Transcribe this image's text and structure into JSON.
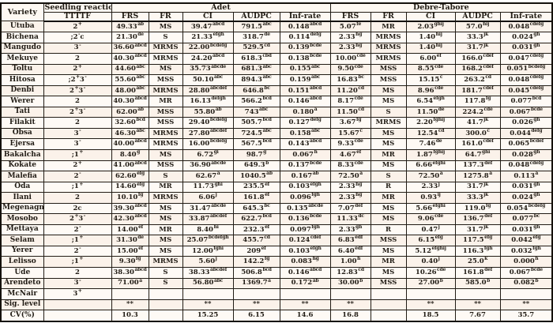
{
  "header": {
    "variety": "Variety",
    "seedling_reaction": "Seedling reaction",
    "race": "TTTTF",
    "location_adet": "Adet",
    "location_debre": "Debre-Tabore",
    "metrics": [
      "FRS",
      "FR",
      "CI",
      "AUDPC",
      "Inf-rate"
    ]
  },
  "rows": [
    {
      "variety": "Utuba",
      "seedling": "2{+}",
      "cells": [
        [
          "49.33",
          "ab"
        ],
        "MS",
        [
          "39.47",
          "abcd"
        ],
        [
          "791.5",
          "abc"
        ],
        [
          "0.148",
          "abcd"
        ],
        [
          "5.07",
          "fe"
        ],
        "MR",
        [
          "2.03",
          "ghij"
        ],
        [
          "57.0",
          "hij"
        ],
        [
          "0.048",
          "cdefg"
        ]
      ]
    },
    {
      "variety": "Bichena",
      "seedling": ";2{-}c",
      "cells": [
        [
          "21.30",
          "de"
        ],
        "S",
        [
          "21.33",
          "efgh"
        ],
        [
          "318.7",
          "de"
        ],
        [
          "0.114",
          "defg"
        ],
        [
          "2.33",
          "hg"
        ],
        "MRMS",
        [
          "1.40",
          "hij"
        ],
        [
          "33.3",
          "jk"
        ],
        [
          "0.024",
          "gh"
        ]
      ]
    },
    {
      "variety": "Mangudo",
      "seedling": "3{-}",
      "cells": [
        [
          "36.60",
          "abcd"
        ],
        "MRMS",
        [
          "22.00",
          "bcdefg"
        ],
        [
          "529.5",
          "cd"
        ],
        [
          "0.139",
          "bcde"
        ],
        [
          "2.33",
          "hg"
        ],
        "MRMS",
        [
          "1.40",
          "hij"
        ],
        [
          "31.7",
          "jk"
        ],
        [
          "0.031",
          "gh"
        ]
      ]
    },
    {
      "variety": "Mekuye",
      "seedling": "2",
      "cells": [
        [
          "40.30",
          "abcd"
        ],
        "MRMS",
        [
          "24.20",
          "abcd"
        ],
        [
          "618.3",
          "cbd"
        ],
        [
          "0.138",
          "bcde"
        ],
        [
          "10.00",
          "cde"
        ],
        "MRMS",
        [
          "6.00",
          "ef"
        ],
        [
          "166.0",
          "cdef"
        ],
        [
          "0.047",
          "cdefg"
        ]
      ]
    },
    {
      "variety": "Toltu",
      "seedling": "2{+}",
      "cells": [
        [
          "44.60",
          "abc"
        ],
        "MS",
        [
          "35.73",
          "abcde"
        ],
        [
          "681.3",
          "abc"
        ],
        [
          "0.155",
          "abc"
        ],
        [
          "9.50",
          "cde"
        ],
        "MSS",
        [
          "8.55",
          "cde"
        ],
        [
          "168.2",
          "cdef"
        ],
        [
          "0.051",
          "bcdefg"
        ]
      ]
    },
    {
      "variety": "Hitosa",
      "seedling": ";2{+}3{-}",
      "cells": [
        [
          "55.60",
          "abc"
        ],
        "MSS",
        [
          "50.10",
          "abc"
        ],
        [
          "894.3",
          "abc"
        ],
        [
          "0.159",
          "abc"
        ],
        [
          "16.83",
          "bc"
        ],
        "MSS",
        [
          "15.15",
          "c"
        ],
        [
          "263.2",
          "cd"
        ],
        [
          "0.048",
          "cdefg"
        ]
      ]
    },
    {
      "variety": "Denbi",
      "seedling": "2{+}3{-}",
      "cells": [
        [
          "48.00",
          "abc"
        ],
        "MRMS",
        [
          "28.80",
          "abcdef"
        ],
        [
          "646.8",
          "bc"
        ],
        [
          "0.151",
          "abcd"
        ],
        [
          "11.20",
          "cd"
        ],
        "MS",
        [
          "8.96",
          "cde"
        ],
        [
          "181.7",
          "cdef"
        ],
        [
          "0.045",
          "cdefg"
        ]
      ]
    },
    {
      "variety": "Werer",
      "seedling": "2",
      "cells": [
        [
          "40.30",
          "abcd"
        ],
        "MR",
        [
          "16.13",
          "defgh"
        ],
        [
          "566.2",
          "bcd"
        ],
        [
          "0.146",
          "abcd"
        ],
        [
          "8.17",
          "cde"
        ],
        "MS",
        [
          "6.54",
          "efgh"
        ],
        [
          "117.8",
          "fg"
        ],
        [
          "0.077",
          "bcd"
        ]
      ]
    },
    {
      "variety": "Tati",
      "seedling": "2{+}3{-}",
      "cells": [
        [
          "62.00",
          "ab"
        ],
        "MSS",
        [
          "55.80",
          "ab"
        ],
        [
          "743",
          "abc"
        ],
        [
          "0.180",
          "a"
        ],
        [
          "11.50",
          "cd"
        ],
        "S",
        [
          "11.50",
          "de"
        ],
        [
          "224.2",
          "cde"
        ],
        [
          "0.067",
          "bcde"
        ]
      ]
    },
    {
      "variety": "Filakit",
      "seedling": "2",
      "cells": [
        [
          "32.60",
          "bcd"
        ],
        "MSS",
        [
          "29.40",
          "bcdefg"
        ],
        [
          "505.7",
          "bcd"
        ],
        [
          "0.127",
          "defg"
        ],
        [
          "3.67",
          "fg"
        ],
        "MRMS",
        [
          "2.20",
          "fghij"
        ],
        [
          "41.7",
          "jk"
        ],
        [
          "0.026",
          "gh"
        ]
      ]
    },
    {
      "variety": "Obsa",
      "seedling": "3{-}",
      "cells": [
        [
          "46.30",
          "abc"
        ],
        "MRMS",
        [
          "27.80",
          "abcdef"
        ],
        [
          "724.5",
          "abc"
        ],
        [
          "0.158",
          "abc"
        ],
        [
          "15.67",
          "c"
        ],
        "MS",
        [
          "12.54",
          "cd"
        ],
        [
          "300.0",
          "c"
        ],
        [
          "0.044",
          "defg"
        ]
      ]
    },
    {
      "variety": "Ejersa",
      "seedling": "3{-}",
      "cells": [
        [
          "40.00",
          "abcd"
        ],
        "MRMS",
        [
          "16.00",
          "bcdefg"
        ],
        [
          "567.5",
          "bcd"
        ],
        [
          "0.143",
          "abcd"
        ],
        [
          "9.33",
          "cde"
        ],
        "MS",
        [
          "7.46",
          "de"
        ],
        [
          "161.0",
          "cdef"
        ],
        [
          "0.065",
          "bcdef"
        ]
      ]
    },
    {
      "variety": "Bakalcha",
      "seedling": ";1{+}",
      "cells": [
        [
          "8.40",
          "g"
        ],
        "MS",
        [
          "6.72",
          "gi"
        ],
        [
          "98.7",
          "g"
        ],
        [
          "0.067",
          "h"
        ],
        [
          "4.67",
          "ef"
        ],
        "MR",
        [
          "1.87",
          "fghij"
        ],
        [
          "64.7",
          "ghi"
        ],
        [
          "0.028",
          "gh"
        ]
      ]
    },
    {
      "variety": "Kokate",
      "seedling": "2{+}",
      "cells": [
        [
          "41.00",
          "abcd"
        ],
        "MSS",
        [
          "36.90",
          "abcde"
        ],
        [
          "649.3",
          "b"
        ],
        [
          "0.137",
          "bcde"
        ],
        [
          "8.33",
          "cde"
        ],
        "MS",
        [
          "6.66",
          "efghi"
        ],
        [
          "137.3",
          "def"
        ],
        [
          "0.048",
          "cdefg"
        ]
      ]
    },
    {
      "variety": "Malefia",
      "seedling": "2{-}",
      "cells": [
        [
          "62.60",
          "efg"
        ],
        "S",
        [
          "62.67",
          "a"
        ],
        [
          "1040.5",
          "ab"
        ],
        [
          "0.167",
          "ab"
        ],
        [
          "72.50",
          "a"
        ],
        "S",
        [
          "72.50",
          "a"
        ],
        [
          "1275.8",
          "a"
        ],
        [
          "0.113",
          "a"
        ]
      ]
    },
    {
      "variety": "Oda",
      "seedling": ";1{+}",
      "cells": [
        [
          "14.60",
          "efg"
        ],
        "MR",
        [
          "11.73",
          "ghi"
        ],
        [
          "235.5",
          "ef"
        ],
        [
          "0.103",
          "efgh"
        ],
        [
          "2.33",
          "hg"
        ],
        "R",
        [
          "2.33",
          "j"
        ],
        [
          "31.7",
          "jk"
        ],
        [
          "0.031",
          "gh"
        ]
      ]
    },
    {
      "variety": "Ilani",
      "seedling": "2",
      "cells": [
        [
          "10.10",
          "fg"
        ],
        "MRMS",
        [
          "6.06",
          "j"
        ],
        [
          "161.8",
          "ef"
        ],
        [
          "0.096",
          "fgh"
        ],
        [
          "2.33",
          "hg"
        ],
        "MR",
        [
          "0.93",
          "ij"
        ],
        [
          "33.3",
          "jk"
        ],
        [
          "0.024",
          "gh"
        ]
      ]
    },
    {
      "variety": "Megenagna",
      "seedling": "2c",
      "cells": [
        [
          "39.30",
          "abcd"
        ],
        "MS",
        [
          "31.47",
          "abcde"
        ],
        [
          "645.3",
          "bc"
        ],
        [
          "0.135",
          "abcde"
        ],
        [
          "7.07",
          "def"
        ],
        "MS",
        [
          "5.66",
          "efghi"
        ],
        [
          "119.0",
          "fg"
        ],
        [
          "0.054",
          "bcdefg"
        ]
      ]
    },
    {
      "variety": "Mosobo",
      "seedling": "2{+}3{-}",
      "cells": [
        [
          "42.30",
          "abcd"
        ],
        "MS",
        [
          "33.87",
          "abcdef"
        ],
        [
          "622.7",
          "bcd"
        ],
        [
          "0.136",
          "bcde"
        ],
        [
          "11.33",
          "dc"
        ],
        "MS",
        [
          "9.06",
          "cde"
        ],
        [
          "136.7",
          "def"
        ],
        [
          "0.077",
          "bc"
        ]
      ]
    },
    {
      "variety": "Mettaya",
      "seedling": "2{-}",
      "cells": [
        [
          "14.00",
          "ef"
        ],
        "MR",
        [
          "8.40",
          "hi"
        ],
        [
          "232.3",
          "ef"
        ],
        [
          "0.097",
          "fgh"
        ],
        [
          "2.33",
          "gh"
        ],
        "R",
        [
          "0.47",
          "j"
        ],
        [
          "31.7",
          "jk"
        ],
        [
          "0.031",
          "gh"
        ]
      ]
    },
    {
      "variety": "Selam",
      "seedling": ";1{+}",
      "cells": [
        [
          "31.30",
          "de"
        ],
        "MS",
        [
          "25.07",
          "bcdefgh"
        ],
        [
          "455.7",
          "cd"
        ],
        [
          "0.124",
          "cdef"
        ],
        [
          "6.83",
          "edf"
        ],
        "MSS",
        [
          "6.15",
          "efg"
        ],
        [
          "117.5",
          "efg"
        ],
        [
          "0.042",
          "efg"
        ]
      ]
    },
    {
      "variety": "Yerer",
      "seedling": "2{-}",
      "cells": [
        [
          "15.00",
          "ef"
        ],
        "MS",
        [
          "12.00",
          "fghi"
        ],
        [
          "209",
          "ef"
        ],
        [
          "0.103",
          "efgh"
        ],
        [
          "6.40",
          "edf"
        ],
        "MS",
        [
          "5.12",
          "efghij"
        ],
        [
          "116.3",
          "fgh"
        ],
        [
          "0.032",
          "fgh"
        ]
      ]
    },
    {
      "variety": "Lelisso",
      "seedling": ";1{+}",
      "cells": [
        [
          "9.30",
          "fg"
        ],
        "MRMS",
        [
          "5.60",
          "j"
        ],
        [
          "142.2",
          "fg"
        ],
        [
          "0.083",
          "hg"
        ],
        [
          "1.00",
          "h"
        ],
        "MR",
        [
          "0.40",
          "j"
        ],
        [
          "25.0",
          "k"
        ],
        [
          "0.000",
          "h"
        ]
      ]
    },
    {
      "variety": "Ude",
      "seedling": "2",
      "cells": [
        [
          "38.30",
          "abcd"
        ],
        "S",
        [
          "38.33",
          "abcdef"
        ],
        [
          "506.8",
          "bcd"
        ],
        [
          "0.146",
          "abcd"
        ],
        [
          "12.83",
          "cd"
        ],
        "MS",
        [
          "10.26",
          "cde"
        ],
        [
          "161.8",
          "def"
        ],
        [
          "0.067",
          "bcde"
        ]
      ]
    },
    {
      "variety": "Arendeto",
      "seedling": "3{-}",
      "cells": [
        [
          "71.00",
          "a"
        ],
        "S",
        [
          "56.80",
          "abc"
        ],
        [
          "1369.7",
          "a"
        ],
        [
          "0.172",
          "ab"
        ],
        [
          "30.00",
          "b"
        ],
        "MSS",
        [
          "27.00",
          "b"
        ],
        [
          "585.0",
          "b"
        ],
        [
          "0.082",
          "b"
        ]
      ]
    },
    {
      "variety": "McNair",
      "seedling": "3{+}",
      "cells": [
        "",
        "",
        "",
        "",
        "",
        "",
        "",
        "",
        "",
        ""
      ]
    }
  ],
  "footer": {
    "sig_label": "Sig. level",
    "sig_values": [
      "**",
      "",
      "**",
      "**",
      "**",
      "**",
      "",
      "**",
      "**",
      "**"
    ],
    "cv_label": "CV(%)",
    "cv_values": [
      "10.3",
      "",
      "15.25",
      "6.15",
      "14.6",
      "16.8",
      "",
      "18.5",
      "7.67",
      "35.7"
    ]
  }
}
